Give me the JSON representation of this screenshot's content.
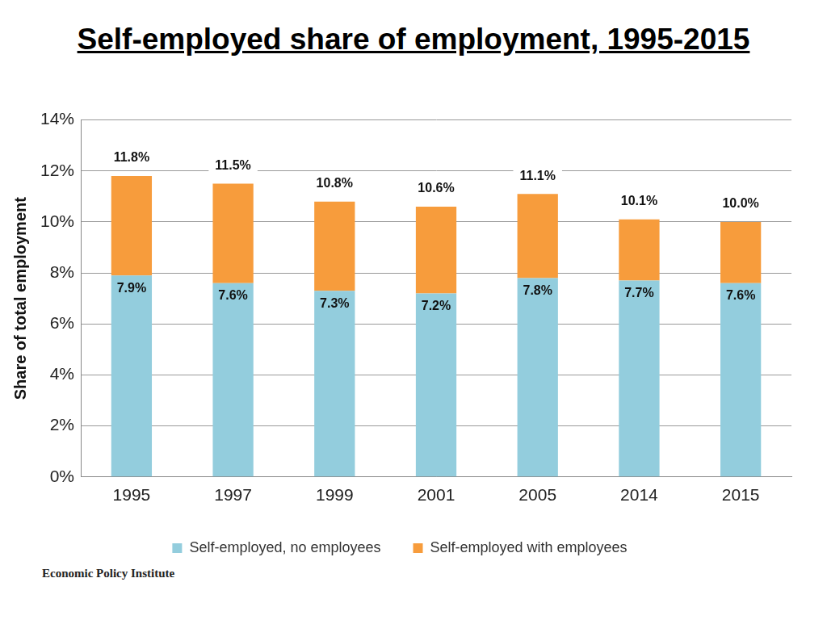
{
  "chart_data": {
    "type": "bar",
    "title": "Self-employed share of employment, 1995-2015",
    "y_label": "Share of total employment",
    "source": "Economic Policy Institute",
    "categories": [
      "1995",
      "1997",
      "1999",
      "2001",
      "2005",
      "2014",
      "2015"
    ],
    "series": [
      {
        "name": "Self-employed, no employees",
        "color": "#93cddd",
        "values": [
          7.9,
          7.6,
          7.3,
          7.2,
          7.8,
          7.7,
          7.6
        ],
        "value_labels": [
          "7.9%",
          "7.6%",
          "7.3%",
          "7.2%",
          "7.8%",
          "7.7%",
          "7.6%"
        ],
        "data_labels": true
      },
      {
        "name": "Self-employed with employees",
        "color": "#f79c3c",
        "values": [
          3.9,
          3.9,
          3.5,
          3.4,
          3.3,
          2.4,
          2.4
        ],
        "data_labels": false
      }
    ],
    "totals": [
      11.8,
      11.5,
      10.8,
      10.6,
      11.1,
      10.1,
      10.0
    ],
    "total_labels": [
      "11.8%",
      "11.5%",
      "10.8%",
      "10.6%",
      "11.1%",
      "10.1%",
      "10.0%"
    ],
    "stacked": true,
    "ylim": [
      0,
      14
    ],
    "yticks": [
      {
        "value": 0,
        "label": "0%"
      },
      {
        "value": 2,
        "label": "2%"
      },
      {
        "value": 4,
        "label": "4%"
      },
      {
        "value": 6,
        "label": "6%"
      },
      {
        "value": 8,
        "label": "8%"
      },
      {
        "value": 10,
        "label": "10%"
      },
      {
        "value": 12,
        "label": "12%"
      },
      {
        "value": 14,
        "label": "14%"
      }
    ],
    "grid": true,
    "legend": "bottom"
  }
}
